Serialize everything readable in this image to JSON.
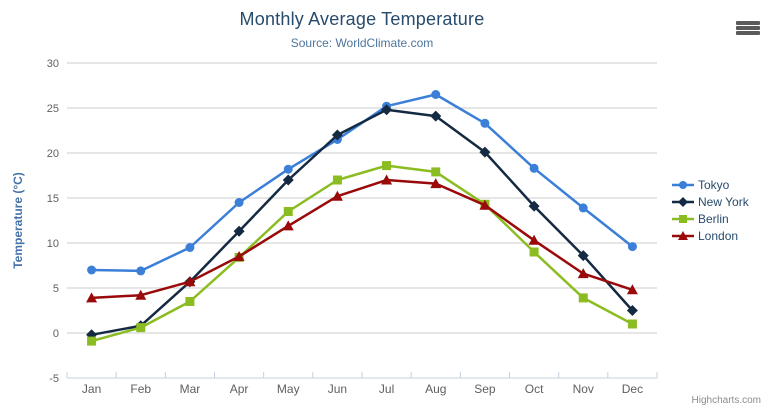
{
  "header": {
    "title": "Monthly Average Temperature",
    "subtitle": "Source: WorldClimate.com"
  },
  "credits_label": "Highcharts.com",
  "icons": {
    "context_menu": "hamburger-icon"
  },
  "chart_data": {
    "type": "line",
    "title": "Monthly Average Temperature",
    "subtitle": "Source: WorldClimate.com",
    "xlabel": "",
    "ylabel": "Temperature (°C)",
    "ylim": [
      -5,
      30
    ],
    "ytick_step": 5,
    "grid": "horizontal",
    "legend_position": "right",
    "categories": [
      "Jan",
      "Feb",
      "Mar",
      "Apr",
      "May",
      "Jun",
      "Jul",
      "Aug",
      "Sep",
      "Oct",
      "Nov",
      "Dec"
    ],
    "series": [
      {
        "name": "Tokyo",
        "color": "#3b7fd8",
        "marker": "circle",
        "values": [
          7.0,
          6.9,
          9.5,
          14.5,
          18.2,
          21.5,
          25.2,
          26.5,
          23.3,
          18.3,
          13.9,
          9.6
        ]
      },
      {
        "name": "New York",
        "color": "#142a42",
        "marker": "diamond",
        "values": [
          -0.2,
          0.8,
          5.7,
          11.3,
          17.0,
          22.0,
          24.8,
          24.1,
          20.1,
          14.1,
          8.6,
          2.5
        ]
      },
      {
        "name": "Berlin",
        "color": "#8bbc21",
        "marker": "square",
        "values": [
          -0.9,
          0.6,
          3.5,
          8.4,
          13.5,
          17.0,
          18.6,
          17.9,
          14.3,
          9.0,
          3.9,
          1.0
        ]
      },
      {
        "name": "London",
        "color": "#9a0a0a",
        "marker": "triangle",
        "values": [
          3.9,
          4.2,
          5.7,
          8.5,
          11.9,
          15.2,
          17.0,
          16.6,
          14.2,
          10.3,
          6.6,
          4.8
        ]
      }
    ],
    "style": {
      "grid_color": "#cccccc",
      "axis_line_color": "#c0d0e0",
      "tick_label_color": "#606060",
      "axis_title_color": "#4572a7",
      "legend_text_color": "#274b6d"
    }
  }
}
